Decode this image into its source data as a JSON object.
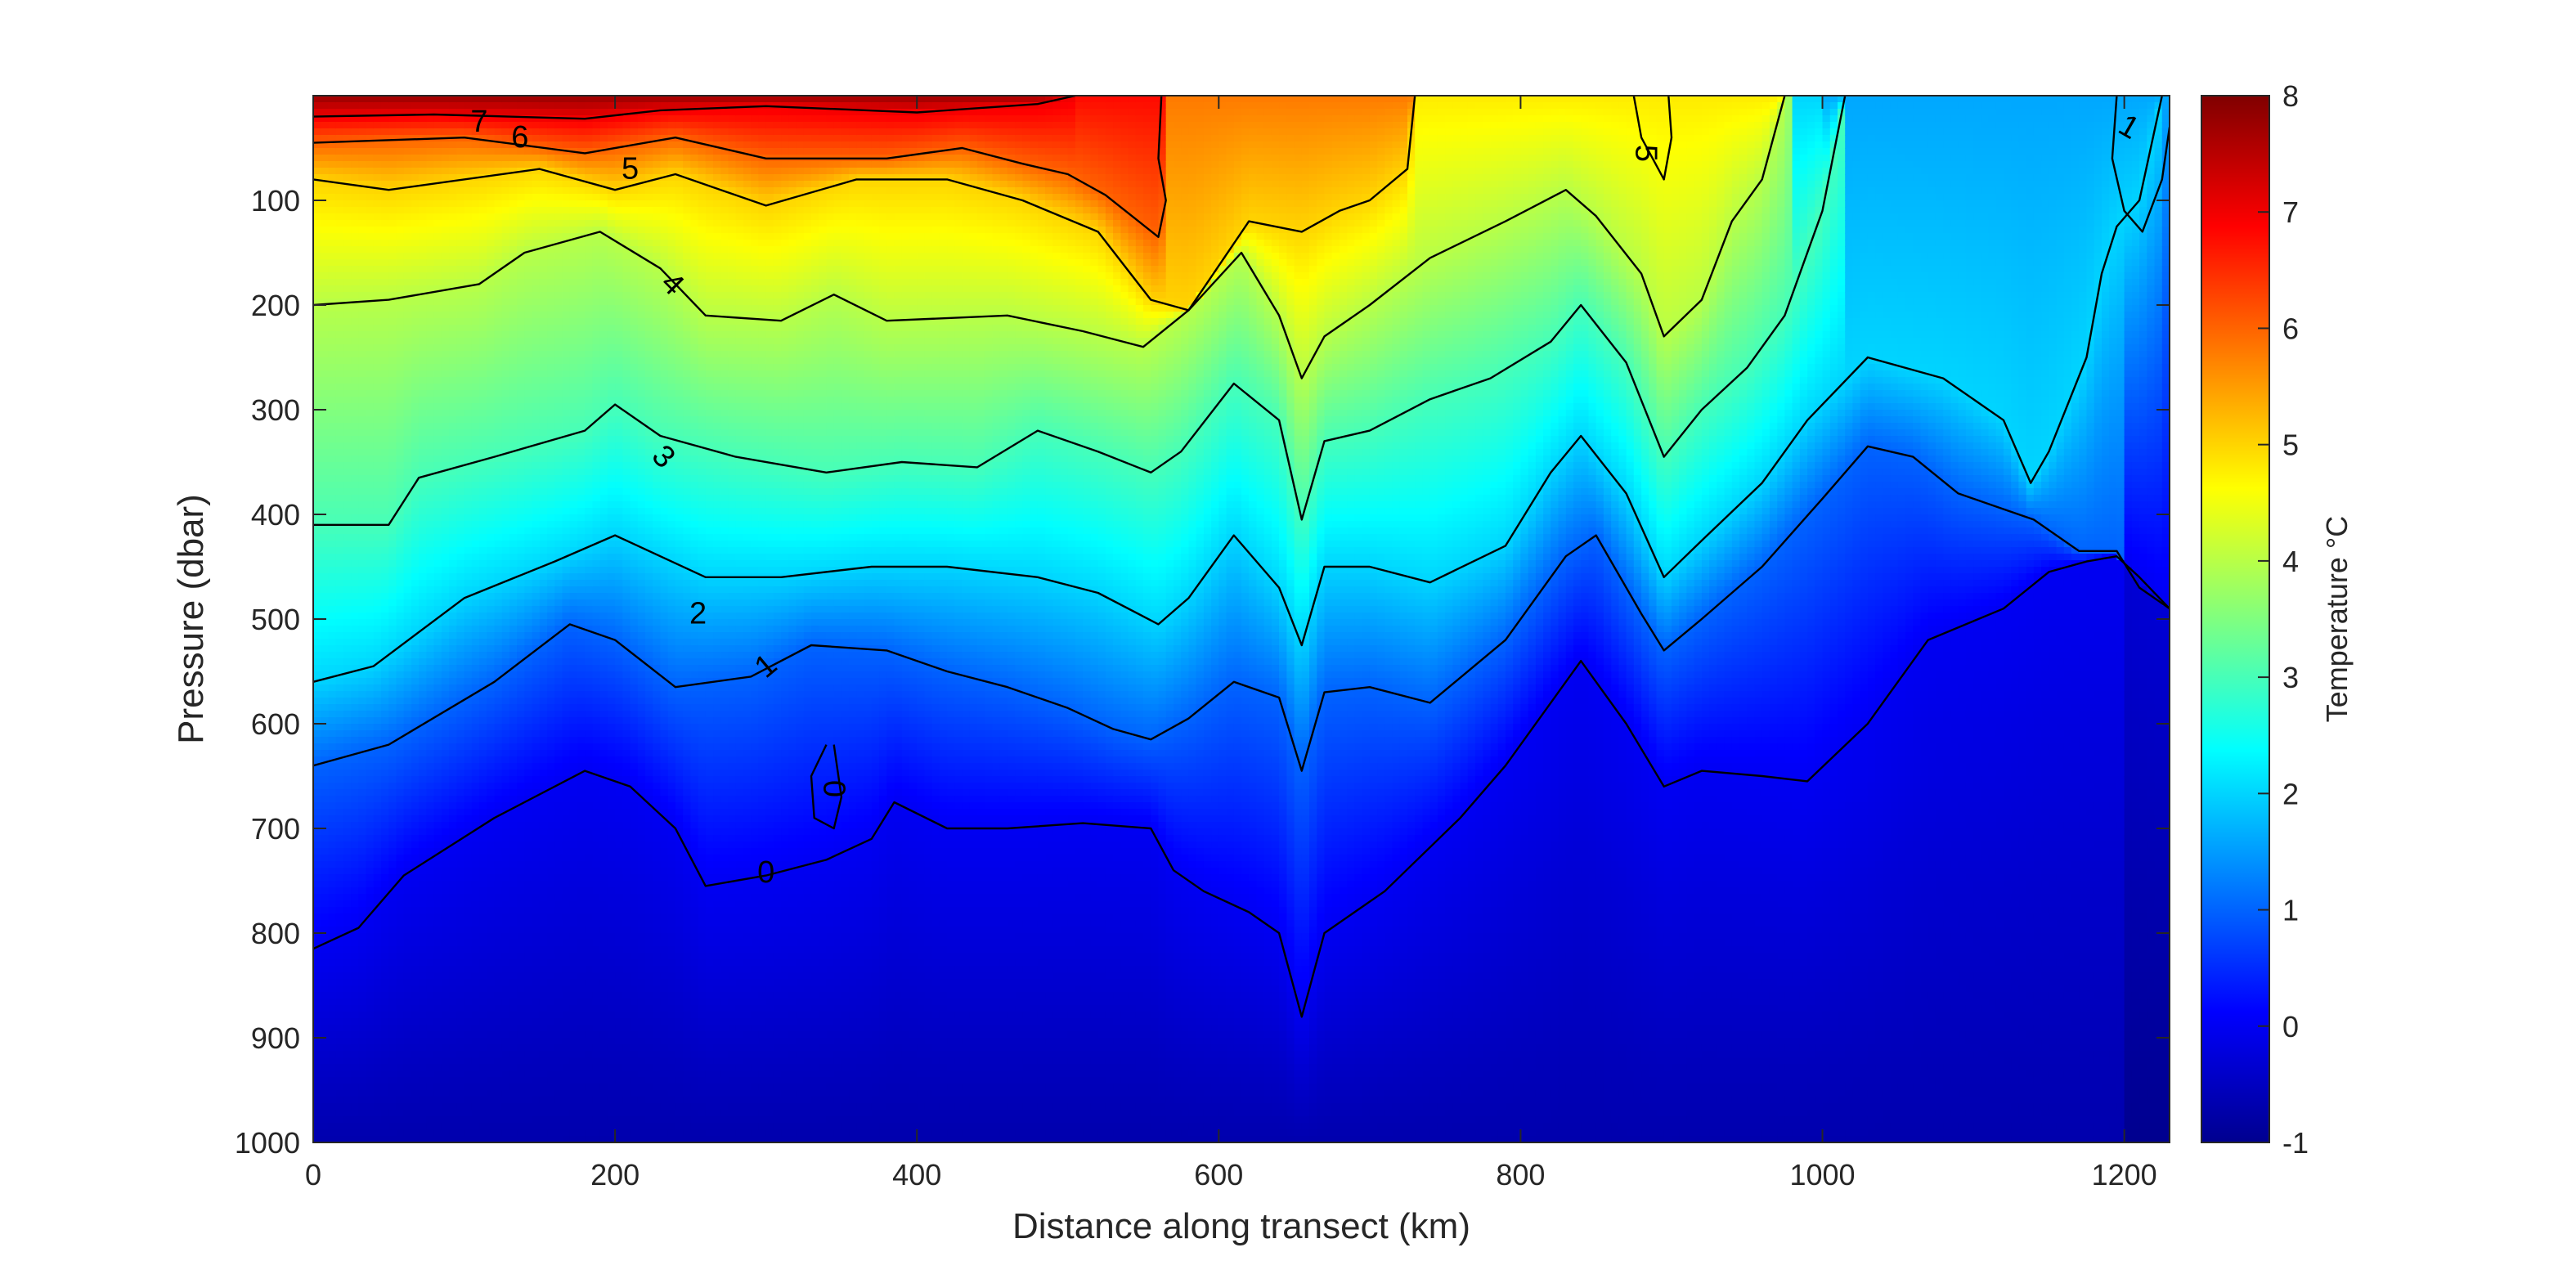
{
  "chart_data": {
    "type": "heatmap",
    "subtype": "filled contour section with labelled isotherms",
    "title": "",
    "xlabel": "Distance along transect (km)",
    "ylabel": "Pressure (dbar)",
    "xlim": [
      0,
      1230
    ],
    "ylim": [
      0,
      1000
    ],
    "y_reversed": true,
    "x_ticks": [
      "0",
      "200",
      "400",
      "600",
      "800",
      "1000",
      "1200"
    ],
    "y_ticks": [
      "100",
      "200",
      "300",
      "400",
      "500",
      "600",
      "700",
      "800",
      "900",
      "1000"
    ],
    "colorbar": {
      "label": "Temperature °C",
      "range": [
        -1,
        8
      ],
      "ticks": [
        "8",
        "7",
        "6",
        "5",
        "4",
        "3",
        "2",
        "1",
        "0",
        "-1"
      ],
      "colormap": "jet"
    },
    "contour_labels": [
      "7",
      "6",
      "5",
      "4",
      "3",
      "2",
      "1",
      "0",
      "0",
      "5",
      "1"
    ],
    "isotherms": [
      {
        "level": 7,
        "points": [
          [
            0,
            20
          ],
          [
            80,
            18
          ],
          [
            180,
            22
          ],
          [
            230,
            14
          ],
          [
            300,
            10
          ],
          [
            400,
            16
          ],
          [
            480,
            8
          ],
          [
            505,
            0
          ]
        ]
      },
      {
        "level": 6,
        "points": [
          [
            0,
            45
          ],
          [
            100,
            40
          ],
          [
            180,
            55
          ],
          [
            240,
            40
          ],
          [
            300,
            60
          ],
          [
            380,
            60
          ],
          [
            430,
            50
          ],
          [
            470,
            65
          ],
          [
            500,
            75
          ],
          [
            525,
            95
          ],
          [
            560,
            135
          ],
          [
            565,
            100
          ],
          [
            560,
            60
          ],
          [
            562,
            0
          ]
        ]
      },
      {
        "level": 5,
        "points": [
          [
            0,
            80
          ],
          [
            50,
            90
          ],
          [
            150,
            70
          ],
          [
            200,
            90
          ],
          [
            240,
            75
          ],
          [
            300,
            105
          ],
          [
            360,
            80
          ],
          [
            420,
            80
          ],
          [
            470,
            100
          ],
          [
            520,
            130
          ],
          [
            555,
            195
          ],
          [
            580,
            205
          ],
          [
            620,
            120
          ],
          [
            655,
            130
          ],
          [
            680,
            110
          ],
          [
            700,
            100
          ],
          [
            725,
            70
          ],
          [
            730,
            0
          ]
        ]
      },
      {
        "level": 5,
        "points": [
          [
            875,
            0
          ],
          [
            880,
            40
          ],
          [
            895,
            80
          ],
          [
            900,
            40
          ],
          [
            898,
            0
          ]
        ]
      },
      {
        "level": 4,
        "points": [
          [
            0,
            200
          ],
          [
            50,
            195
          ],
          [
            110,
            180
          ],
          [
            140,
            150
          ],
          [
            190,
            130
          ],
          [
            230,
            165
          ],
          [
            260,
            210
          ],
          [
            310,
            215
          ],
          [
            345,
            190
          ],
          [
            380,
            215
          ],
          [
            460,
            210
          ],
          [
            510,
            225
          ],
          [
            550,
            240
          ],
          [
            580,
            205
          ],
          [
            615,
            150
          ],
          [
            640,
            210
          ],
          [
            655,
            270
          ],
          [
            670,
            230
          ],
          [
            700,
            200
          ],
          [
            740,
            155
          ],
          [
            790,
            120
          ],
          [
            830,
            90
          ],
          [
            850,
            115
          ],
          [
            880,
            170
          ],
          [
            895,
            230
          ],
          [
            920,
            195
          ],
          [
            940,
            120
          ],
          [
            960,
            80
          ],
          [
            975,
            0
          ]
        ]
      },
      {
        "level": 3,
        "points": [
          [
            0,
            410
          ],
          [
            50,
            410
          ],
          [
            70,
            365
          ],
          [
            120,
            345
          ],
          [
            180,
            320
          ],
          [
            200,
            295
          ],
          [
            230,
            325
          ],
          [
            280,
            345
          ],
          [
            340,
            360
          ],
          [
            390,
            350
          ],
          [
            440,
            355
          ],
          [
            480,
            320
          ],
          [
            520,
            340
          ],
          [
            555,
            360
          ],
          [
            575,
            340
          ],
          [
            610,
            275
          ],
          [
            640,
            310
          ],
          [
            655,
            405
          ],
          [
            670,
            330
          ],
          [
            700,
            320
          ],
          [
            740,
            290
          ],
          [
            780,
            270
          ],
          [
            820,
            235
          ],
          [
            840,
            200
          ],
          [
            870,
            255
          ],
          [
            895,
            345
          ],
          [
            920,
            300
          ],
          [
            950,
            260
          ],
          [
            975,
            210
          ],
          [
            1000,
            110
          ],
          [
            1015,
            0
          ]
        ]
      },
      {
        "level": 2,
        "points": [
          [
            0,
            560
          ],
          [
            40,
            545
          ],
          [
            100,
            480
          ],
          [
            160,
            445
          ],
          [
            200,
            420
          ],
          [
            260,
            460
          ],
          [
            310,
            460
          ],
          [
            370,
            450
          ],
          [
            420,
            450
          ],
          [
            480,
            460
          ],
          [
            520,
            475
          ],
          [
            560,
            505
          ],
          [
            580,
            480
          ],
          [
            610,
            420
          ],
          [
            640,
            470
          ],
          [
            655,
            525
          ],
          [
            670,
            450
          ],
          [
            700,
            450
          ],
          [
            740,
            465
          ],
          [
            790,
            430
          ],
          [
            820,
            360
          ],
          [
            840,
            325
          ],
          [
            870,
            380
          ],
          [
            895,
            460
          ],
          [
            920,
            425
          ],
          [
            960,
            370
          ],
          [
            990,
            310
          ],
          [
            1030,
            250
          ],
          [
            1080,
            270
          ],
          [
            1120,
            310
          ],
          [
            1138,
            370
          ],
          [
            1150,
            340
          ],
          [
            1175,
            250
          ],
          [
            1185,
            170
          ],
          [
            1195,
            125
          ],
          [
            1210,
            100
          ],
          [
            1225,
            0
          ]
        ]
      },
      {
        "level": 1,
        "points": [
          [
            0,
            640
          ],
          [
            50,
            620
          ],
          [
            120,
            560
          ],
          [
            170,
            505
          ],
          [
            200,
            520
          ],
          [
            240,
            565
          ],
          [
            290,
            555
          ],
          [
            330,
            525
          ],
          [
            380,
            530
          ],
          [
            420,
            550
          ],
          [
            460,
            565
          ],
          [
            500,
            585
          ],
          [
            530,
            605
          ],
          [
            555,
            615
          ],
          [
            580,
            595
          ],
          [
            610,
            560
          ],
          [
            640,
            575
          ],
          [
            655,
            645
          ],
          [
            670,
            570
          ],
          [
            700,
            565
          ],
          [
            740,
            580
          ],
          [
            790,
            520
          ],
          [
            830,
            440
          ],
          [
            850,
            420
          ],
          [
            880,
            495
          ],
          [
            895,
            530
          ],
          [
            920,
            500
          ],
          [
            960,
            450
          ],
          [
            1000,
            385
          ],
          [
            1030,
            335
          ],
          [
            1060,
            345
          ],
          [
            1090,
            380
          ],
          [
            1120,
            395
          ],
          [
            1140,
            405
          ],
          [
            1170,
            435
          ],
          [
            1195,
            435
          ],
          [
            1210,
            470
          ],
          [
            1230,
            490
          ]
        ]
      },
      {
        "level": 0,
        "points": [
          [
            0,
            815
          ],
          [
            30,
            795
          ],
          [
            60,
            745
          ],
          [
            120,
            690
          ],
          [
            180,
            645
          ],
          [
            210,
            660
          ],
          [
            240,
            700
          ],
          [
            260,
            755
          ],
          [
            300,
            745
          ],
          [
            340,
            730
          ],
          [
            370,
            710
          ],
          [
            385,
            675
          ],
          [
            420,
            700
          ],
          [
            460,
            700
          ],
          [
            510,
            695
          ],
          [
            555,
            700
          ],
          [
            570,
            740
          ],
          [
            590,
            760
          ],
          [
            620,
            780
          ],
          [
            640,
            800
          ],
          [
            655,
            880
          ],
          [
            670,
            800
          ],
          [
            710,
            760
          ],
          [
            760,
            690
          ],
          [
            790,
            640
          ],
          [
            820,
            580
          ],
          [
            840,
            540
          ],
          [
            870,
            600
          ],
          [
            895,
            660
          ],
          [
            920,
            645
          ],
          [
            960,
            650
          ],
          [
            990,
            655
          ],
          [
            1030,
            600
          ],
          [
            1070,
            520
          ],
          [
            1120,
            490
          ],
          [
            1150,
            455
          ],
          [
            1175,
            445
          ],
          [
            1195,
            440
          ],
          [
            1210,
            460
          ],
          [
            1230,
            490
          ]
        ]
      },
      {
        "level": 0,
        "points": [
          [
            340,
            620
          ],
          [
            330,
            650
          ],
          [
            332,
            690
          ],
          [
            345,
            700
          ],
          [
            350,
            670
          ],
          [
            345,
            620
          ]
        ]
      },
      {
        "level": 1,
        "points": [
          [
            1195,
            0
          ],
          [
            1192,
            60
          ],
          [
            1200,
            110
          ],
          [
            1212,
            130
          ],
          [
            1225,
            80
          ],
          [
            1230,
            30
          ]
        ]
      }
    ],
    "label_positions": [
      {
        "text": "7",
        "x": 110,
        "y": 25,
        "rotate": 0
      },
      {
        "text": "6",
        "x": 137,
        "y": 40,
        "rotate": 0
      },
      {
        "text": "5",
        "x": 210,
        "y": 70,
        "rotate": 0
      },
      {
        "text": "4",
        "x": 238,
        "y": 180,
        "rotate": 45
      },
      {
        "text": "3",
        "x": 232,
        "y": 345,
        "rotate": 45
      },
      {
        "text": "2",
        "x": 255,
        "y": 495,
        "rotate": 0
      },
      {
        "text": "1",
        "x": 300,
        "y": 545,
        "rotate": -40
      },
      {
        "text": "0",
        "x": 300,
        "y": 742,
        "rotate": 0
      },
      {
        "text": "0",
        "x": 345,
        "y": 662,
        "rotate": 90
      },
      {
        "text": "5",
        "x": 883,
        "y": 55,
        "rotate": 90
      },
      {
        "text": "1",
        "x": 1203,
        "y": 30,
        "rotate": 30
      }
    ]
  }
}
